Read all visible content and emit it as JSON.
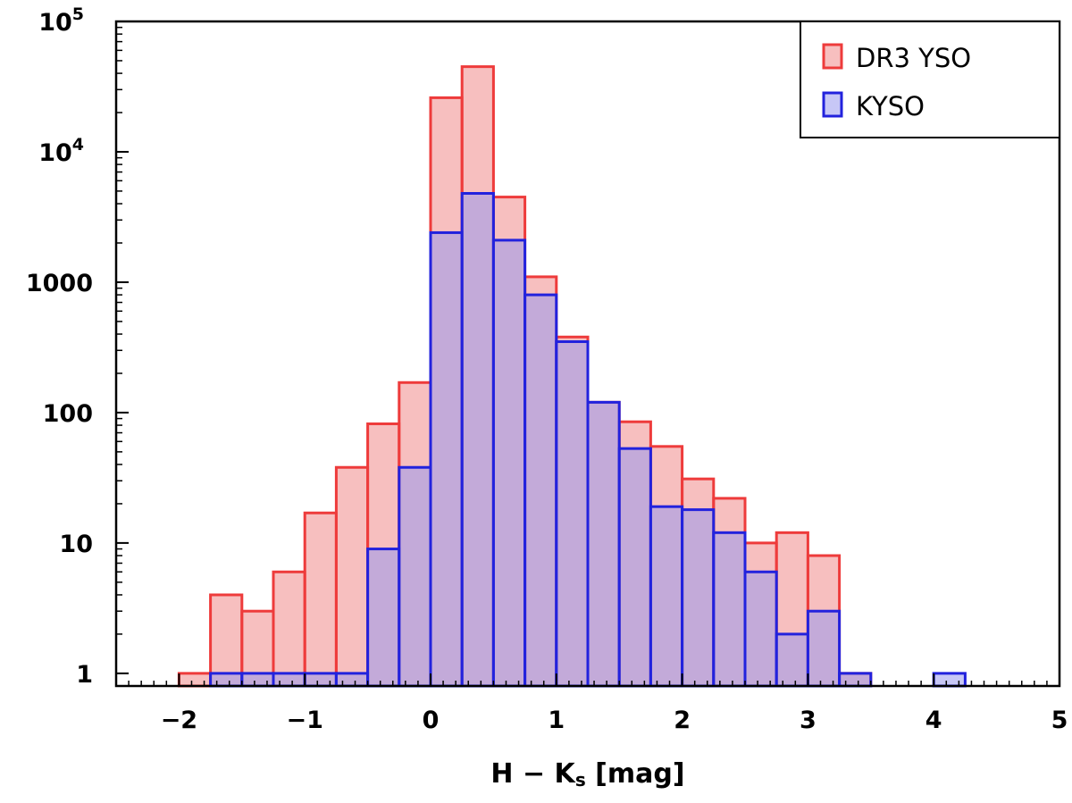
{
  "chart_data": {
    "type": "bar",
    "bin_edges": [
      -2.0,
      -1.75,
      -1.5,
      -1.25,
      -1.0,
      -0.75,
      -0.5,
      -0.25,
      0.0,
      0.25,
      0.5,
      0.75,
      1.0,
      1.25,
      1.5,
      1.75,
      2.0,
      2.25,
      2.5,
      2.75,
      3.0,
      3.25,
      3.5,
      3.75,
      4.0,
      4.25
    ],
    "series": [
      {
        "name": "DR3 YSO",
        "color": "#f08080",
        "edge_color": "#ee3b3b",
        "values": [
          1,
          4,
          3,
          6,
          17,
          38,
          82,
          170,
          26000,
          45000,
          4500,
          1100,
          380,
          120,
          85,
          55,
          31,
          22,
          10,
          12,
          8,
          1,
          0,
          0,
          0
        ]
      },
      {
        "name": "KYSO",
        "color": "#9999ee",
        "edge_color": "#2222dd",
        "values": [
          0,
          1,
          1,
          1,
          1,
          1,
          9,
          38,
          2400,
          4800,
          2100,
          800,
          350,
          120,
          53,
          19,
          18,
          12,
          6,
          2,
          3,
          1,
          0,
          0,
          1
        ]
      }
    ],
    "xlabel": "H − K",
    "xlabel_subscript": "s",
    "xlabel_unit": " [mag]",
    "ylabel": "",
    "xlim": [
      -2.5,
      5
    ],
    "ylim": [
      0.8,
      100000
    ],
    "yscale": "log",
    "xticks": [
      -2,
      -1,
      0,
      1,
      2,
      3,
      4,
      5
    ],
    "xtick_labels": [
      "−2",
      "−1",
      "0",
      "1",
      "2",
      "3",
      "4",
      "5"
    ],
    "yticks": [
      {
        "value": 1,
        "label": "1"
      },
      {
        "value": 10,
        "label": "10"
      },
      {
        "value": 100,
        "label": "100"
      },
      {
        "value": 1000,
        "label": "1000"
      },
      {
        "value": 10000,
        "label": "10",
        "sup": "4"
      },
      {
        "value": 100000,
        "label": "10",
        "sup": "5"
      }
    ],
    "legend": {
      "position": "top-right"
    },
    "grid": false
  }
}
